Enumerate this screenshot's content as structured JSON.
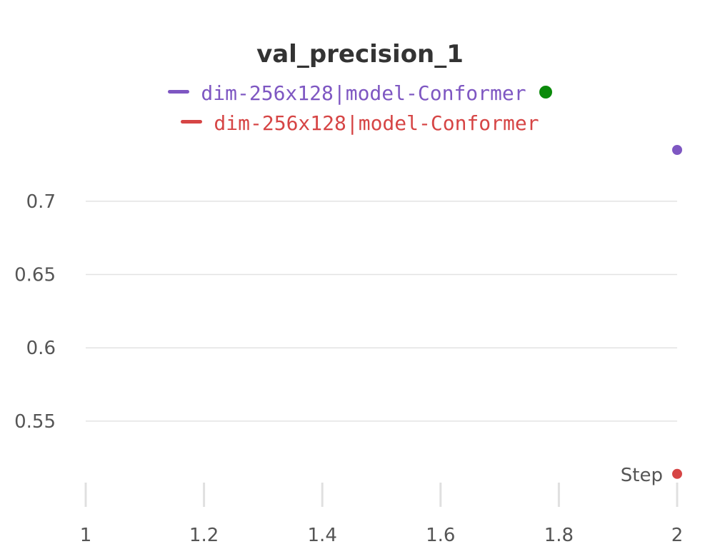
{
  "chart_data": {
    "type": "scatter",
    "title": "val_precision_1",
    "xlabel": "Step",
    "ylabel": "",
    "xlim": [
      1,
      2
    ],
    "ylim": [
      0.51,
      0.735
    ],
    "xticks": [
      1,
      1.2,
      1.4,
      1.6,
      1.8,
      2
    ],
    "xtick_labels": [
      "1",
      "1.2",
      "1.4",
      "1.6",
      "1.8",
      "2"
    ],
    "yticks": [
      0.55,
      0.6,
      0.65,
      0.7
    ],
    "ytick_labels": [
      "0.55",
      "0.6",
      "0.65",
      "0.7"
    ],
    "grid": true,
    "legend_position": "top-center",
    "legend_status_color": "#0a8a0a",
    "series": [
      {
        "name": "dim-256x128|model-Conformer",
        "color": "#7e57c2",
        "x": [
          2
        ],
        "y": [
          0.735
        ]
      },
      {
        "name": "dim-256x128|model-Conformer",
        "color": "#d64545",
        "x": [
          2
        ],
        "y": [
          0.514
        ]
      }
    ]
  }
}
